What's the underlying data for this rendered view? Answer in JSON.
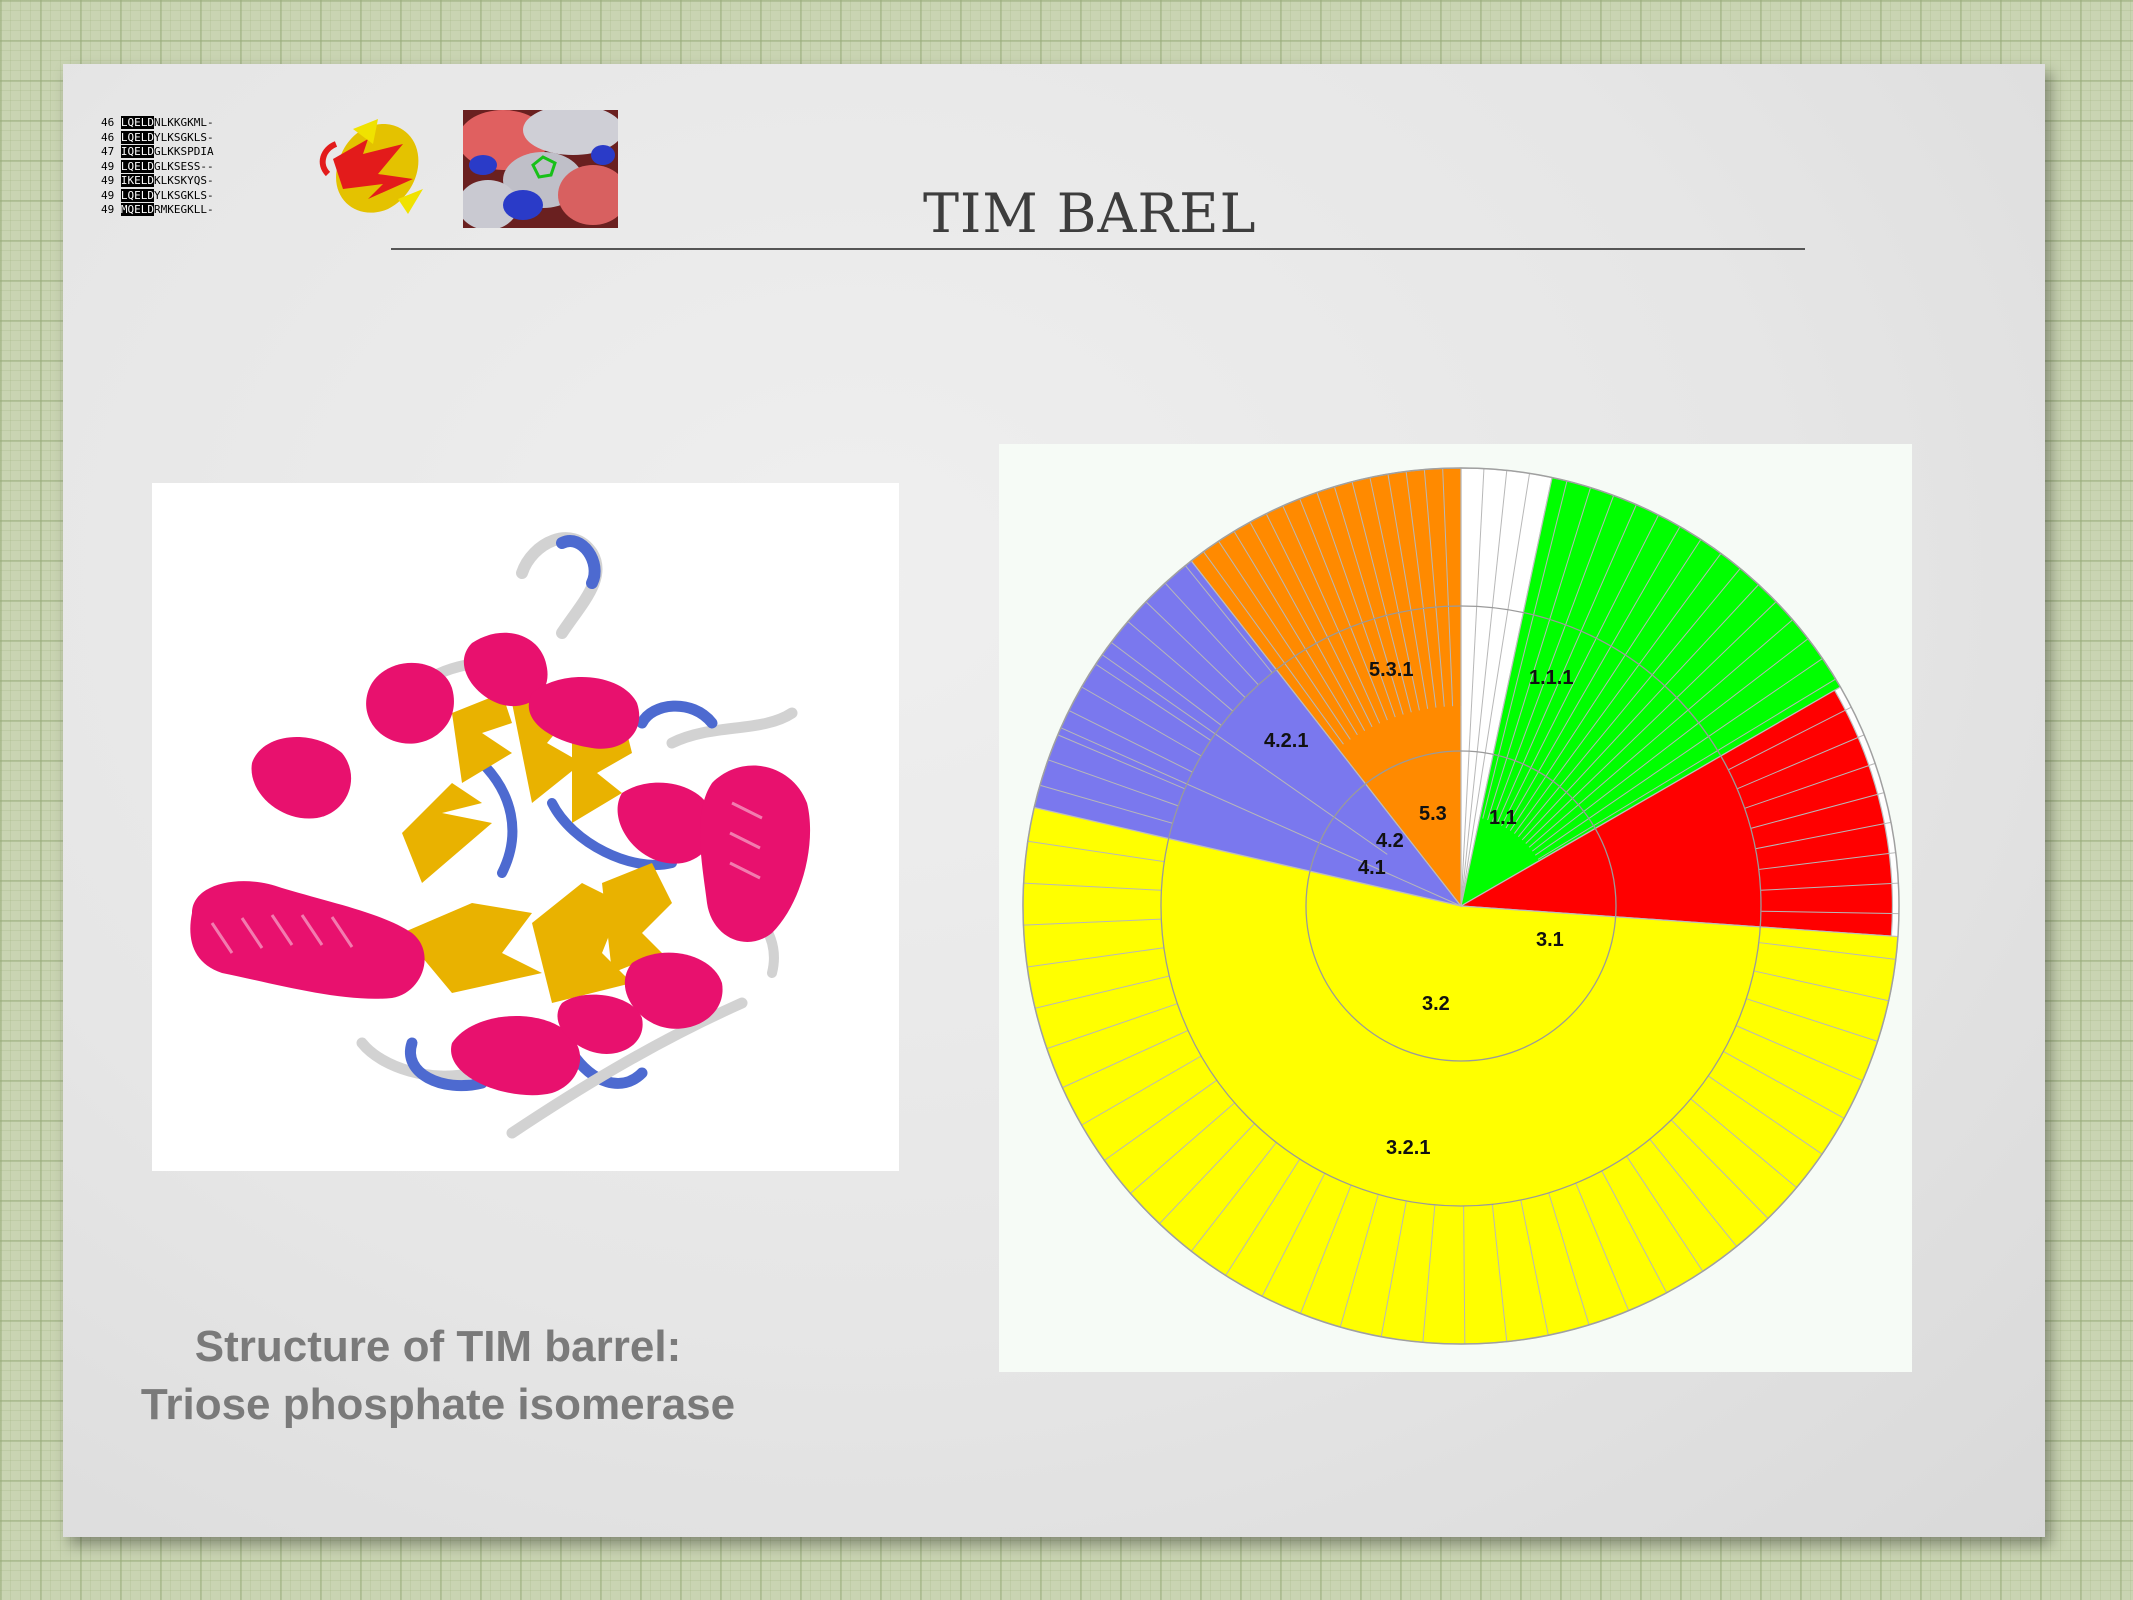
{
  "title": "TIM BAREL",
  "sequence_thumb": {
    "rows": [
      {
        "num": "46",
        "seq": "LQELDNLKKGKML-"
      },
      {
        "num": "46",
        "seq": "LQELDYLKSGKLS-"
      },
      {
        "num": "47",
        "seq": "IQELDGLKKSPDIA"
      },
      {
        "num": "49",
        "seq": "LQELDGLKSESS--"
      },
      {
        "num": "49",
        "seq": "IKELDKLKSKYQS-"
      },
      {
        "num": "49",
        "seq": "LQELDYLKSGKLS-"
      },
      {
        "num": "49",
        "seq": "MQELDRMKEGKLL-"
      }
    ]
  },
  "caption": {
    "line1": "Structure of TIM barrel:",
    "line2": "Triose phosphate isomerase"
  },
  "colors": {
    "helix": "#e8116e",
    "strand": "#e9b200",
    "loop_blue": "#4d6ad0",
    "loop_gray": "#d2d2d2",
    "sector_orange": "#ff8a00",
    "sector_blue": "#7a78ee",
    "sector_yellow": "#ffff00",
    "sector_red": "#ff0000",
    "sector_green": "#00ff00",
    "sector_white": "#ffffff"
  },
  "chart_data": {
    "type": "pie",
    "inner_rings": [
      {
        "label": "1.1",
        "value": 14
      },
      {
        "label": "3.1",
        "value": 9
      },
      {
        "label": "3.2",
        "value": 49
      },
      {
        "label": "4.1",
        "value": 6
      },
      {
        "label": "4.2",
        "value": 4
      },
      {
        "label": "5.3",
        "value": 18
      }
    ],
    "outer_labels": [
      "1.1.1",
      "3.2.1",
      "4.2.1",
      "5.3.1"
    ],
    "center_labels": [
      "1.1",
      "3.1",
      "3.2",
      "4.1",
      "4.2",
      "5.3"
    ]
  }
}
